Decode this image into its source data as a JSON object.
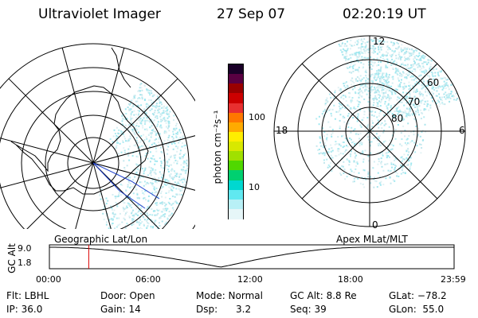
{
  "header": {
    "instrument": "Ultraviolet Imager",
    "date": "27 Sep 07",
    "time": "02:20:19 UT"
  },
  "geo_panel": {
    "label": "Geographic Lat/Lon"
  },
  "apex_panel": {
    "label": "Apex MLat/MLT",
    "mlt_labels": {
      "top": "12",
      "left": "18",
      "right": "6",
      "bottom": "0"
    },
    "mlat_labels": [
      "60",
      "70",
      "80"
    ]
  },
  "colorbar": {
    "unit_label": "photon cm⁻²s⁻¹",
    "ticks": [
      "100",
      "10"
    ],
    "colors": [
      "#1a0028",
      "#5a0042",
      "#990000",
      "#cc0000",
      "#e83030",
      "#ff7700",
      "#ffaa00",
      "#ffee00",
      "#d8e800",
      "#a0e000",
      "#50d800",
      "#00d070",
      "#00d8d0",
      "#60e8f0",
      "#b8f0f6",
      "#e6f6f8"
    ]
  },
  "timeline": {
    "axis_label": "GC Alt",
    "y_ticks": [
      "9.0",
      "1.8"
    ],
    "x_ticks": [
      "00:00",
      "06:00",
      "12:00",
      "18:00",
      "23:59"
    ],
    "marker_time": "02:20",
    "marker_color": "#dd0000"
  },
  "status": {
    "flt": "Flt: LBHL",
    "ip": "IP: 36.0",
    "door": "Door: Open",
    "gain": "Gain: 14",
    "mode": "Mode: Normal",
    "dsp": "Dsp:      3.2",
    "gc_alt": "GC Alt: 8.8 Re",
    "seq": "Seq: 39",
    "glat": "GLat: −78.2",
    "glon": "GLon:  55.0"
  }
}
